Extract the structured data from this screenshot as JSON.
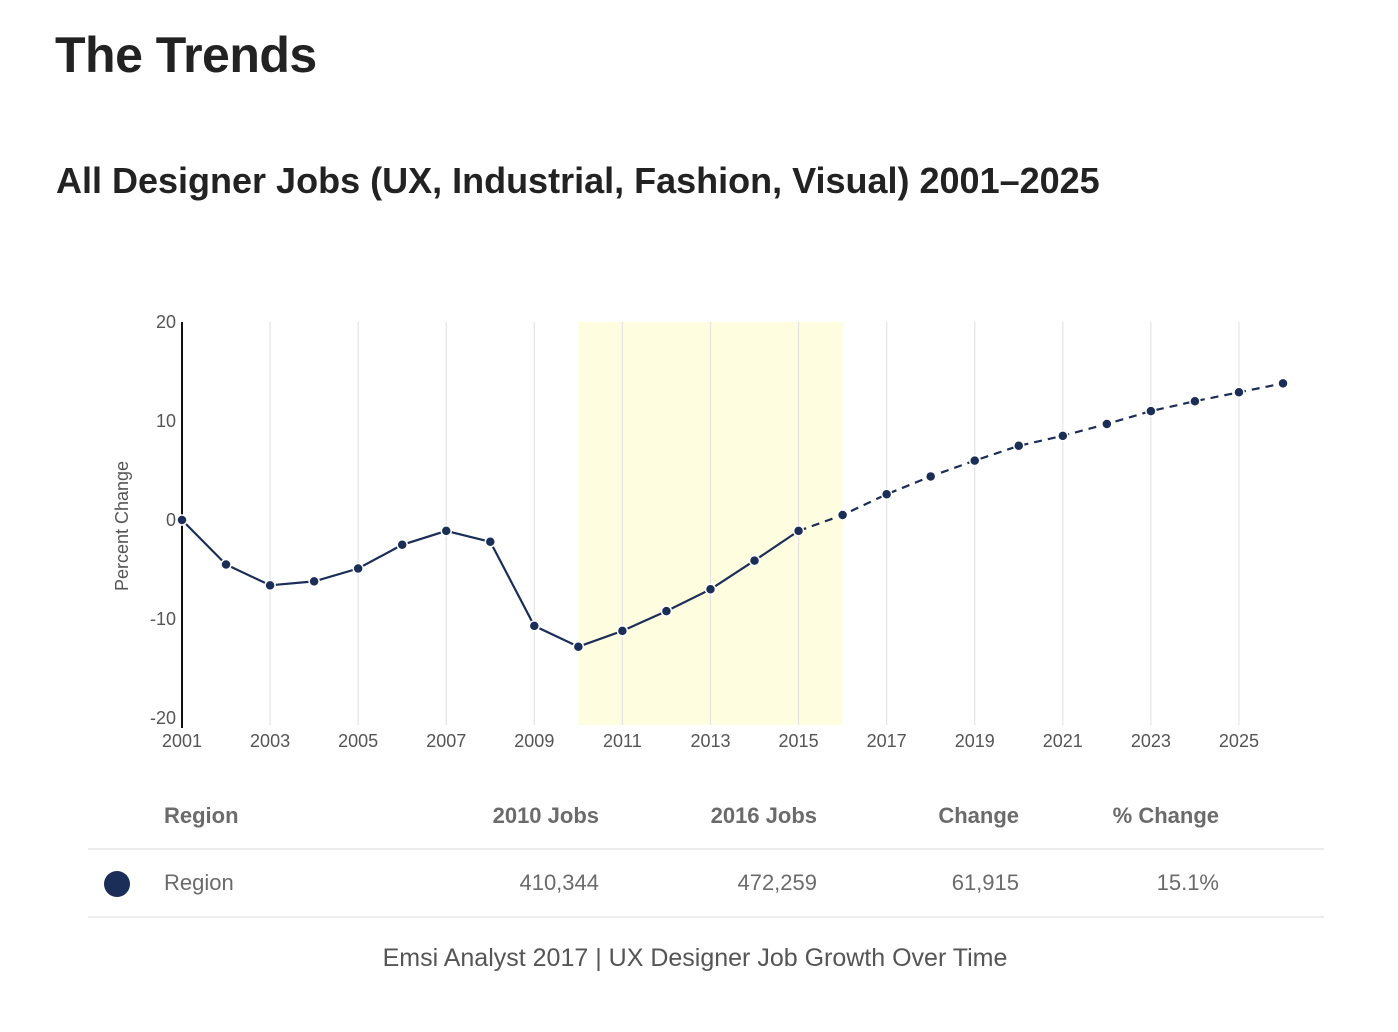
{
  "page": {
    "heading": "The Trends",
    "chart_heading": "All Designer Jobs (UX, Industrial, Fashion, Visual) 2001–2025",
    "caption": "Emsi Analyst 2017 | UX Designer Job Growth Over Time"
  },
  "chart_data": {
    "type": "line",
    "title": "All Designer Jobs (UX, Industrial, Fashion, Visual) 2001–2025",
    "xlabel": "",
    "ylabel": "Percent Change",
    "ylim": [
      -20,
      20
    ],
    "xlim": [
      2001,
      2026
    ],
    "yticks": [
      20,
      10,
      0,
      -10,
      -20
    ],
    "xticks": [
      2001,
      2003,
      2005,
      2007,
      2009,
      2011,
      2013,
      2015,
      2017,
      2019,
      2021,
      2023,
      2025
    ],
    "grid": "vertical",
    "highlight_range": [
      2010,
      2016
    ],
    "highlight_color": "#fefde0",
    "line_color": "#1b2e58",
    "historical_until": 2015,
    "x": [
      2001,
      2002,
      2003,
      2004,
      2005,
      2006,
      2007,
      2008,
      2009,
      2010,
      2011,
      2012,
      2013,
      2014,
      2015,
      2016,
      2017,
      2018,
      2019,
      2020,
      2021,
      2022,
      2023,
      2024,
      2025,
      2026
    ],
    "series": [
      {
        "values": [
          0,
          -4.5,
          -6.6,
          -6.2,
          -4.9,
          -2.5,
          -1.1,
          -2.2,
          -10.7,
          -12.8,
          -11.2,
          -9.2,
          -7.0,
          -4.1,
          -1.1,
          0.5,
          2.6,
          4.4,
          6.0,
          7.5,
          8.5,
          9.7,
          11.0,
          12.0,
          12.9,
          13.8
        ]
      }
    ]
  },
  "table": {
    "headers": {
      "region": "Region",
      "jobs_2010": "2010 Jobs",
      "jobs_2016": "2016 Jobs",
      "change": "Change",
      "pct_change": "% Change"
    },
    "rows": [
      {
        "marker_color": "#1b2e58",
        "region": "Region",
        "jobs_2010": "410,344",
        "jobs_2016": "472,259",
        "change": "61,915",
        "pct_change": "15.1%"
      }
    ]
  }
}
